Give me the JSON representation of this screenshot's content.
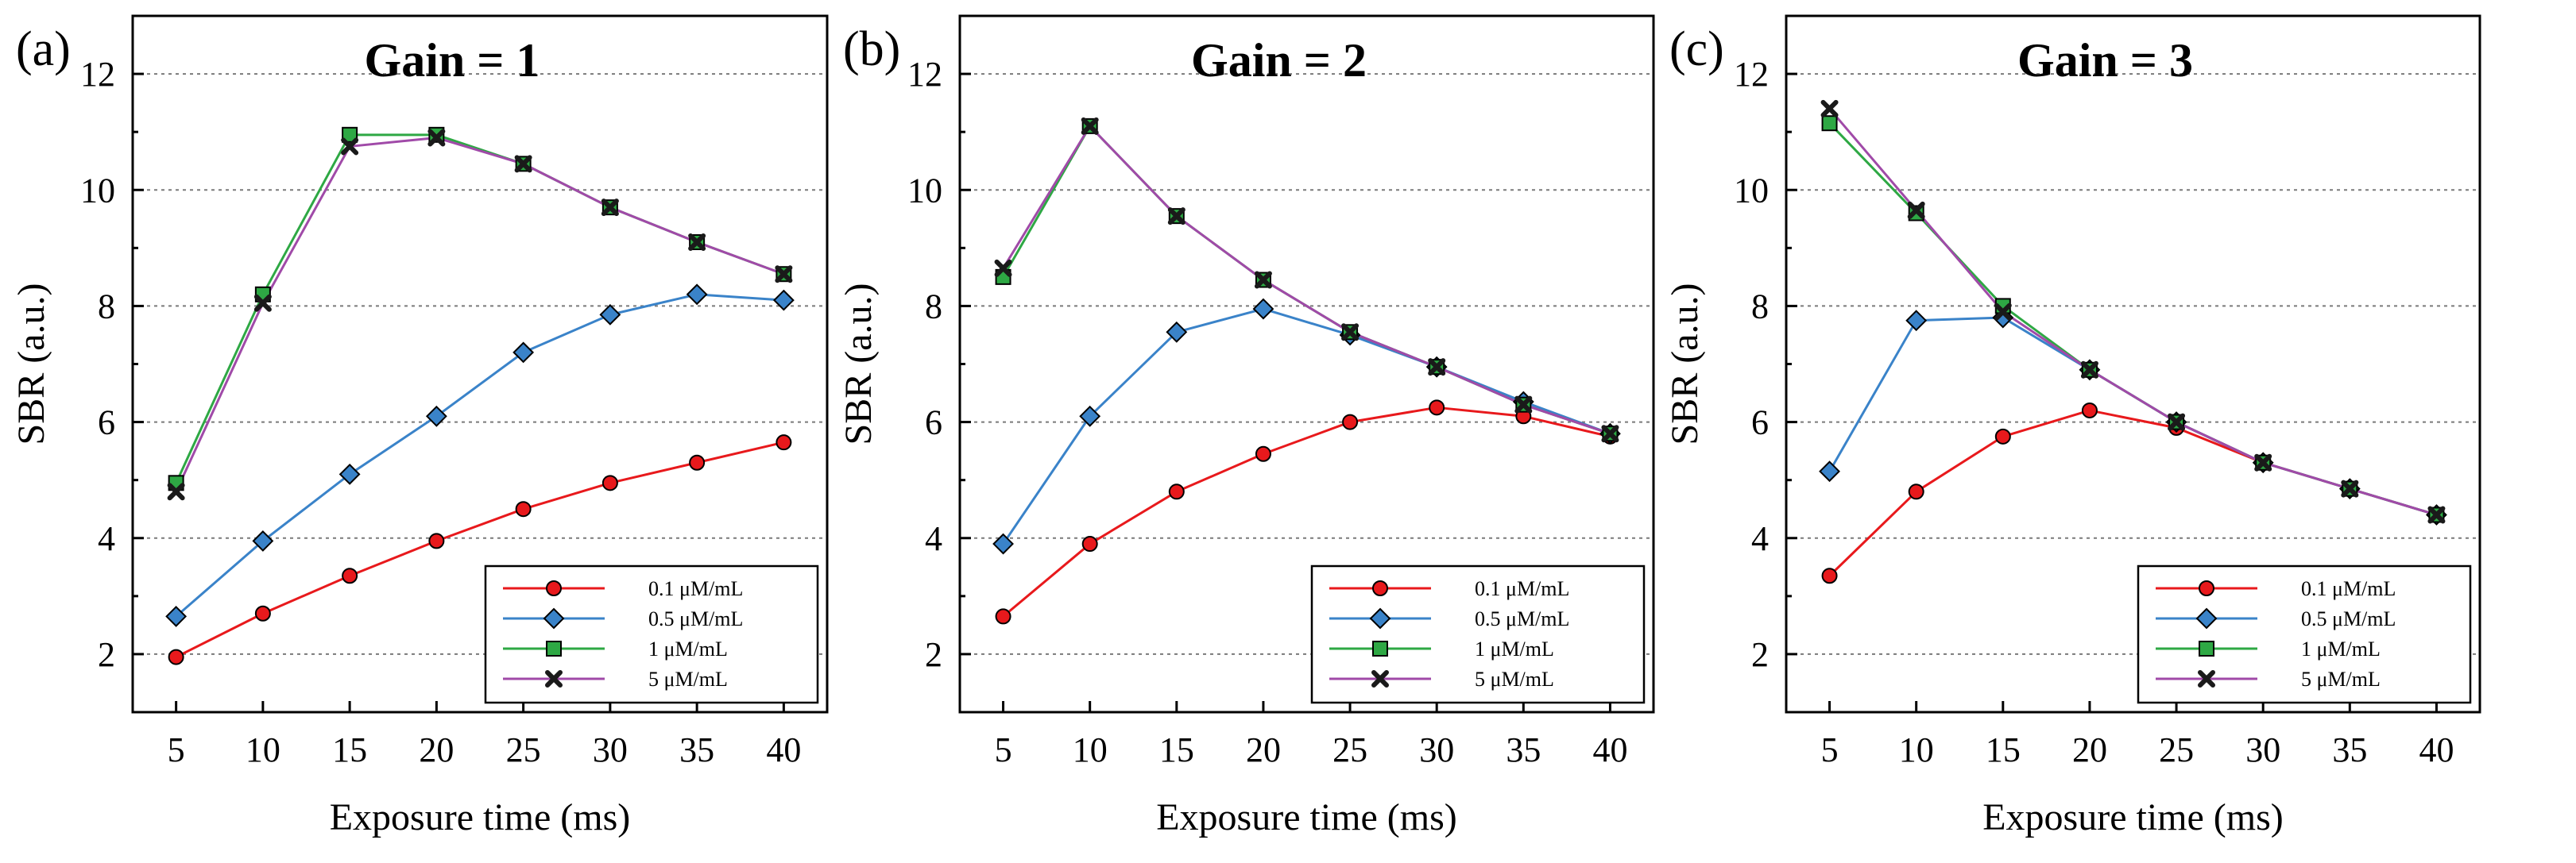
{
  "chart_data": [
    {
      "type": "line",
      "panel_label": "(a)",
      "title": "Gain = 1",
      "xlabel": "Exposure time (ms)",
      "ylabel": "SBR (a.u.)",
      "x": [
        5,
        10,
        15,
        20,
        25,
        30,
        35,
        40
      ],
      "xticks": [
        "5",
        "10",
        "15",
        "20",
        "25",
        "30",
        "35",
        "40"
      ],
      "yticks": [
        "2",
        "4",
        "6",
        "8",
        "10",
        "12"
      ],
      "ylim": [
        1,
        13
      ],
      "grid": "horizontal-dashed",
      "legend_position": "bottom-right",
      "series": [
        {
          "name": "0.1 μM/mL",
          "color": "#e8191c",
          "marker": "circle",
          "values": [
            1.95,
            2.7,
            3.35,
            3.95,
            4.5,
            4.95,
            5.3,
            5.65
          ]
        },
        {
          "name": "0.5 μM/mL",
          "color": "#3a83c9",
          "marker": "diamond",
          "values": [
            2.65,
            3.95,
            5.1,
            6.1,
            7.2,
            7.85,
            8.2,
            8.1
          ]
        },
        {
          "name": "1 μM/mL",
          "color": "#2ea844",
          "marker": "square",
          "values": [
            4.95,
            8.2,
            10.95,
            10.95,
            10.45,
            9.7,
            9.1,
            8.55
          ]
        },
        {
          "name": "5 μM/mL",
          "color": "#a04aa8",
          "marker": "cross",
          "values": [
            4.8,
            8.05,
            10.75,
            10.9,
            10.45,
            9.7,
            9.1,
            8.55
          ]
        }
      ]
    },
    {
      "type": "line",
      "panel_label": "(b)",
      "title": "Gain = 2",
      "xlabel": "Exposure time (ms)",
      "ylabel": "SBR (a.u.)",
      "x": [
        5,
        10,
        15,
        20,
        25,
        30,
        35,
        40
      ],
      "xticks": [
        "5",
        "10",
        "15",
        "20",
        "25",
        "30",
        "35",
        "40"
      ],
      "yticks": [
        "2",
        "4",
        "6",
        "8",
        "10",
        "12"
      ],
      "ylim": [
        1,
        13
      ],
      "grid": "horizontal-dashed",
      "legend_position": "bottom-right",
      "series": [
        {
          "name": "0.1 μM/mL",
          "color": "#e8191c",
          "marker": "circle",
          "values": [
            2.65,
            3.9,
            4.8,
            5.45,
            6.0,
            6.25,
            6.1,
            5.75
          ]
        },
        {
          "name": "0.5 μM/mL",
          "color": "#3a83c9",
          "marker": "diamond",
          "values": [
            3.9,
            6.1,
            7.55,
            7.95,
            7.5,
            6.95,
            6.35,
            5.8
          ]
        },
        {
          "name": "1 μM/mL",
          "color": "#2ea844",
          "marker": "square",
          "values": [
            8.5,
            11.1,
            9.55,
            8.45,
            7.55,
            6.95,
            6.3,
            5.8
          ]
        },
        {
          "name": "5 μM/mL",
          "color": "#a04aa8",
          "marker": "cross",
          "values": [
            8.65,
            11.1,
            9.55,
            8.45,
            7.55,
            6.95,
            6.3,
            5.8
          ]
        }
      ]
    },
    {
      "type": "line",
      "panel_label": "(c)",
      "title": "Gain = 3",
      "xlabel": "Exposure time (ms)",
      "ylabel": "SBR (a.u.)",
      "x": [
        5,
        10,
        15,
        20,
        25,
        30,
        35,
        40
      ],
      "xticks": [
        "5",
        "10",
        "15",
        "20",
        "25",
        "30",
        "35",
        "40"
      ],
      "yticks": [
        "2",
        "4",
        "6",
        "8",
        "10",
        "12"
      ],
      "ylim": [
        1,
        13
      ],
      "grid": "horizontal-dashed",
      "legend_position": "bottom-right",
      "series": [
        {
          "name": "0.1 μM/mL",
          "color": "#e8191c",
          "marker": "circle",
          "values": [
            3.35,
            4.8,
            5.75,
            6.2,
            5.9,
            5.3,
            4.85,
            4.4
          ]
        },
        {
          "name": "0.5 μM/mL",
          "color": "#3a83c9",
          "marker": "diamond",
          "values": [
            5.15,
            7.75,
            7.8,
            6.9,
            6.0,
            5.3,
            4.85,
            4.4
          ]
        },
        {
          "name": "1 μM/mL",
          "color": "#2ea844",
          "marker": "square",
          "values": [
            11.15,
            9.6,
            8.0,
            6.9,
            6.0,
            5.3,
            4.85,
            4.4
          ]
        },
        {
          "name": "5 μM/mL",
          "color": "#a04aa8",
          "marker": "cross",
          "values": [
            11.4,
            9.65,
            7.9,
            6.9,
            6.0,
            5.3,
            4.85,
            4.4
          ]
        }
      ]
    }
  ]
}
